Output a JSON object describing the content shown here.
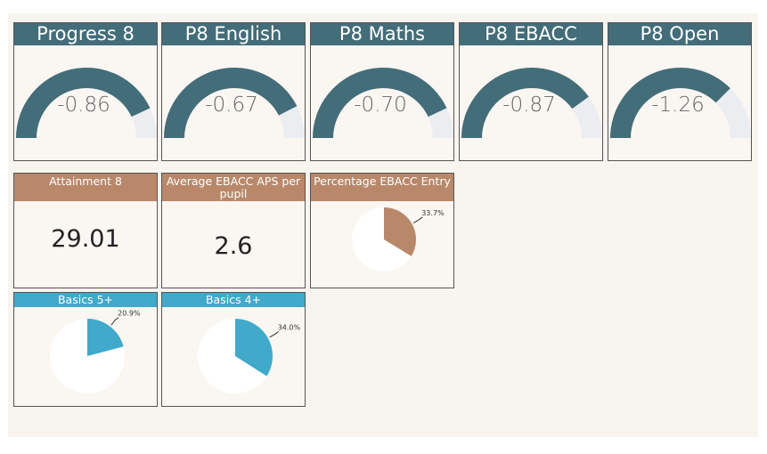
{
  "colors": {
    "gauge": "#436d79",
    "gauge_track": "#ecedf1",
    "brown": "#b9886a",
    "blue": "#41a9ca",
    "pie_rest": "#ffffff"
  },
  "gauges": [
    {
      "title": "Progress 8",
      "label": "-0.86",
      "fraction": 0.86
    },
    {
      "title": "P8 English",
      "label": "-0.67",
      "fraction": 0.85
    },
    {
      "title": "P8 Maths",
      "label": "-0.70",
      "fraction": 0.86
    },
    {
      "title": "P8 EBACC",
      "label": "-0.87",
      "fraction": 0.8
    },
    {
      "title": "P8 Open",
      "label": "-1.26",
      "fraction": 0.75
    }
  ],
  "kpis": [
    {
      "title": "Attainment 8",
      "value": "29.01"
    },
    {
      "title": "Average EBACC APS per pupil",
      "value": "2.6"
    }
  ],
  "pies": [
    {
      "title": "Percentage EBACC Entry",
      "label": "33.7%",
      "value": 33.7,
      "color": "brown"
    },
    {
      "title": "Basics 5+",
      "label": "20.9%",
      "value": 20.9,
      "color": "blue"
    },
    {
      "title": "Basics 4+",
      "label": "34.0%",
      "value": 34.0,
      "color": "blue"
    }
  ],
  "chart_data": [
    {
      "type": "gauge",
      "title": "Progress 8",
      "value": -0.86
    },
    {
      "type": "gauge",
      "title": "P8 English",
      "value": -0.67
    },
    {
      "type": "gauge",
      "title": "P8 Maths",
      "value": -0.7
    },
    {
      "type": "gauge",
      "title": "P8 EBACC",
      "value": -0.87
    },
    {
      "type": "gauge",
      "title": "P8 Open",
      "value": -1.26
    },
    {
      "type": "table",
      "title": "Attainment 8",
      "value": 29.01
    },
    {
      "type": "table",
      "title": "Average EBACC APS per pupil",
      "value": 2.6
    },
    {
      "type": "pie",
      "title": "Percentage EBACC Entry",
      "values": [
        33.7,
        66.3
      ],
      "labels": [
        "33.7%",
        ""
      ]
    },
    {
      "type": "pie",
      "title": "Basics 5+",
      "values": [
        20.9,
        79.1
      ],
      "labels": [
        "20.9%",
        ""
      ]
    },
    {
      "type": "pie",
      "title": "Basics 4+",
      "values": [
        34.0,
        66.0
      ],
      "labels": [
        "34.0%",
        ""
      ]
    }
  ]
}
